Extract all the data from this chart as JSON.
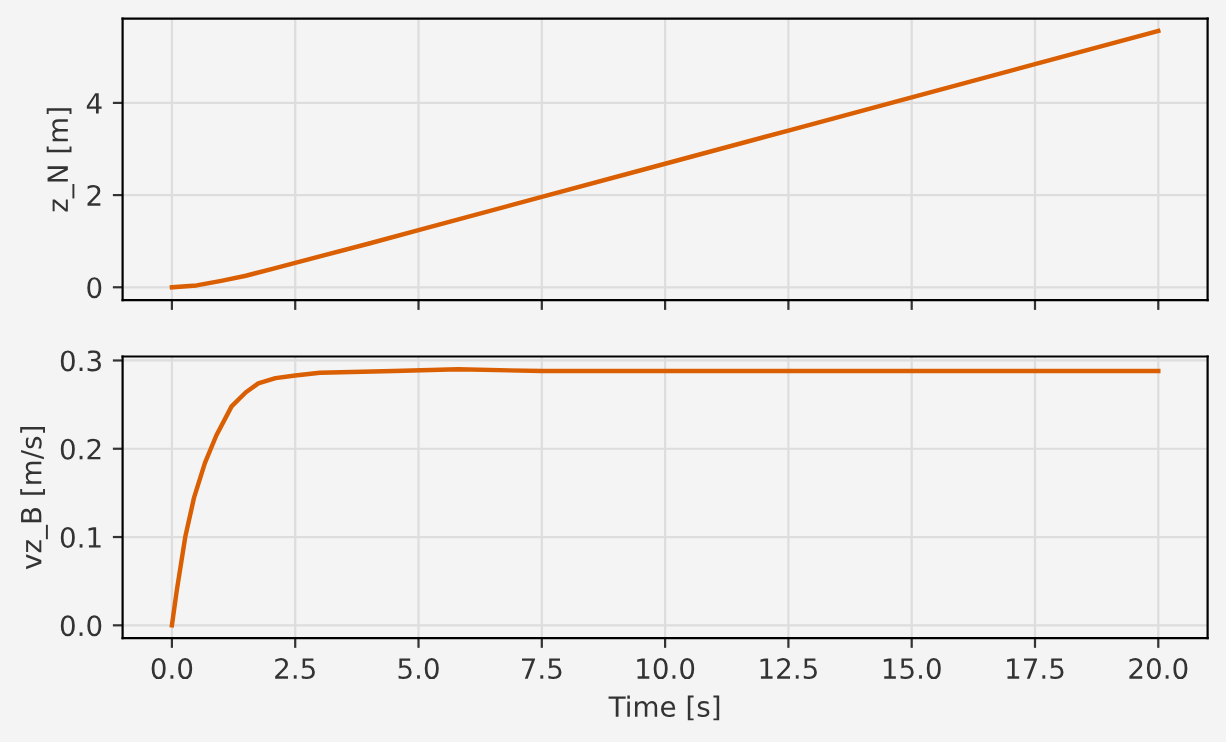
{
  "chart_data": [
    {
      "type": "line",
      "ylabel": "z_N [m]",
      "tick_labels": "y",
      "grid": true,
      "xlim": [
        -1,
        21
      ],
      "xticks": [
        {
          "value": 0,
          "label": null
        },
        {
          "value": 2.5,
          "label": null
        },
        {
          "value": 5,
          "label": null
        },
        {
          "value": 7.5,
          "label": null
        },
        {
          "value": 10,
          "label": null
        },
        {
          "value": 12.5,
          "label": null
        },
        {
          "value": 15,
          "label": null
        },
        {
          "value": 17.5,
          "label": null
        },
        {
          "value": 20,
          "label": null
        }
      ],
      "ylim": [
        -0.28,
        5.83
      ],
      "yticks": [
        0,
        2,
        4
      ],
      "x": [
        0,
        0.5,
        1,
        1.5,
        2,
        3,
        4,
        5,
        7.5,
        10,
        12.5,
        15,
        17.5,
        20
      ],
      "series": [
        {
          "color": "#d95f02",
          "values": [
            0,
            0.04,
            0.14,
            0.25,
            0.39,
            0.67,
            0.95,
            1.24,
            1.96,
            2.68,
            3.4,
            4.12,
            4.84,
            5.56
          ]
        }
      ]
    },
    {
      "type": "line",
      "xlabel": "Time [s]",
      "ylabel": "vz_B [m/s]",
      "grid": true,
      "xlim": [
        -1,
        21
      ],
      "xticks": [
        {
          "value": 0,
          "label": "0.0"
        },
        {
          "value": 2.5,
          "label": "2.5"
        },
        {
          "value": 5,
          "label": "5.0"
        },
        {
          "value": 7.5,
          "label": "7.5"
        },
        {
          "value": 10,
          "label": "10.0"
        },
        {
          "value": 12.5,
          "label": "12.5"
        },
        {
          "value": 15,
          "label": "15.0"
        },
        {
          "value": 17.5,
          "label": "17.5"
        },
        {
          "value": 20,
          "label": "20.0"
        }
      ],
      "ylim": [
        -0.0145,
        0.3045
      ],
      "yticks": [
        {
          "value": 0,
          "label": "0.0"
        },
        {
          "value": 0.1,
          "label": "0.1"
        },
        {
          "value": 0.2,
          "label": "0.2"
        },
        {
          "value": 0.3,
          "label": "0.3"
        }
      ],
      "x": [
        0,
        0.1,
        0.27,
        0.45,
        0.67,
        0.9,
        1.21,
        1.5,
        1.75,
        2.1,
        2.5,
        3,
        3.64,
        4.5,
        5.8,
        7.5,
        10,
        15,
        20
      ],
      "series": [
        {
          "color": "#d95f02",
          "values": [
            0,
            0.04,
            0.1,
            0.145,
            0.184,
            0.215,
            0.248,
            0.264,
            0.274,
            0.28,
            0.283,
            0.286,
            0.287,
            0.288,
            0.29,
            0.288,
            0.288,
            0.288,
            0.288
          ]
        }
      ]
    }
  ]
}
